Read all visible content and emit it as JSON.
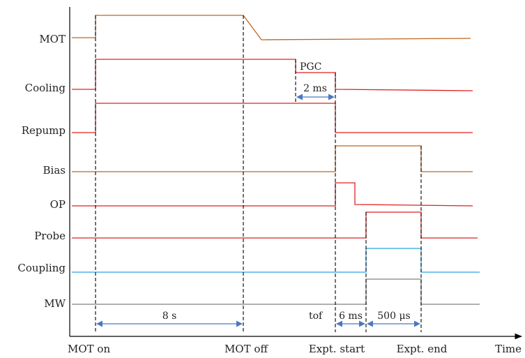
{
  "signals": [
    {
      "key": "mot",
      "label": "MOT",
      "color": "#c0651e"
    },
    {
      "key": "cooling",
      "label": "Cooling",
      "color": "#e02020"
    },
    {
      "key": "repump",
      "label": "Repump",
      "color": "#e02020"
    },
    {
      "key": "bias",
      "label": "Bias",
      "color": "#c0651e"
    },
    {
      "key": "op",
      "label": "OP",
      "color": "#e02020"
    },
    {
      "key": "probe",
      "label": "Probe",
      "color": "#e02020"
    },
    {
      "key": "coupling",
      "label": "Coupling",
      "color": "#2aa3e0"
    },
    {
      "key": "mw",
      "label": "MW",
      "color": "#808080"
    }
  ],
  "x_axis": {
    "label": "Time"
  },
  "events": {
    "mot_on": "MOT on",
    "mot_off": "MOT off",
    "expt_start": "Expt. start",
    "expt_end": "Expt. end"
  },
  "intervals": {
    "pgc": "PGC",
    "pgc_duration": "2 ms",
    "mot_duration": "8 s",
    "tof": "tof",
    "tof_duration": "6 ms",
    "expt_duration": "500 μs"
  },
  "colors": {
    "arrow": "#4a78c0",
    "axis": "#000000"
  }
}
